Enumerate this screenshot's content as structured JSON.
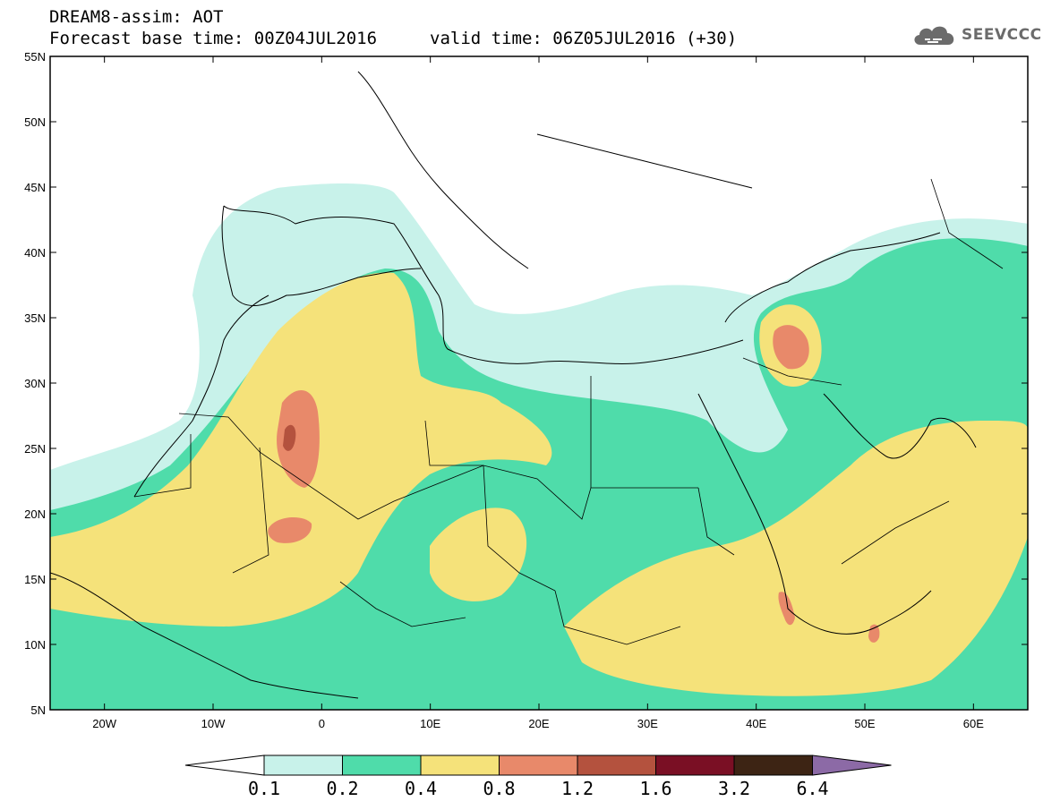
{
  "header": {
    "title": "DREAM8-assim: AOT",
    "base_time": "Forecast base time: 00Z04JUL2016",
    "valid_time": "valid time: 06Z05JUL2016 (+30)"
  },
  "logo": {
    "text": "SEEVCCC",
    "icon": "cloud-icon"
  },
  "map": {
    "lon_range": [
      -25,
      65
    ],
    "lat_range": [
      5,
      55
    ],
    "lat_ticks": [
      {
        "value": 55,
        "label": "55N"
      },
      {
        "value": 50,
        "label": "50N"
      },
      {
        "value": 45,
        "label": "45N"
      },
      {
        "value": 40,
        "label": "40N"
      },
      {
        "value": 35,
        "label": "35N"
      },
      {
        "value": 30,
        "label": "30N"
      },
      {
        "value": 25,
        "label": "25N"
      },
      {
        "value": 20,
        "label": "20N"
      },
      {
        "value": 15,
        "label": "15N"
      },
      {
        "value": 10,
        "label": "10N"
      },
      {
        "value": 5,
        "label": "5N"
      }
    ],
    "lon_ticks": [
      {
        "value": -20,
        "label": "20W"
      },
      {
        "value": -10,
        "label": "10W"
      },
      {
        "value": 0,
        "label": "0"
      },
      {
        "value": 10,
        "label": "10E"
      },
      {
        "value": 20,
        "label": "20E"
      },
      {
        "value": 30,
        "label": "30E"
      },
      {
        "value": 40,
        "label": "40E"
      },
      {
        "value": 50,
        "label": "50E"
      },
      {
        "value": 60,
        "label": "60E"
      }
    ]
  },
  "colorbar": {
    "levels": [
      "0.1",
      "0.2",
      "0.4",
      "0.8",
      "1.2",
      "1.6",
      "3.2",
      "6.4"
    ],
    "colors": [
      "#ffffff",
      "#c8f2ea",
      "#4fdcaa",
      "#f5e27a",
      "#e8896a",
      "#b4523e",
      "#7a0f24",
      "#3d2414",
      "#8c6aa6"
    ]
  },
  "colors": {
    "level1": "#c8f2ea",
    "level2": "#4fdcaa",
    "level3": "#f5e27a",
    "level4": "#e8896a",
    "level5": "#b4523e"
  }
}
